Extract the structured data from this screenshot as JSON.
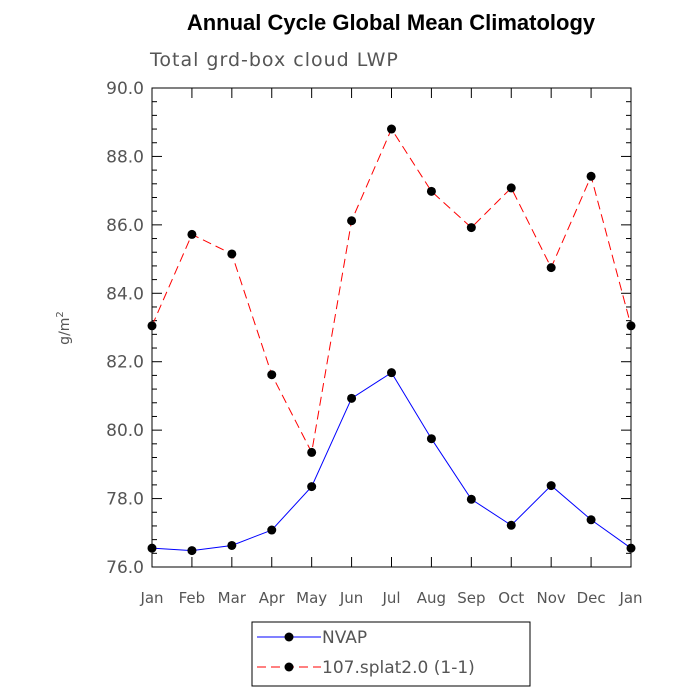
{
  "chart_data": {
    "type": "line",
    "title": "Annual Cycle Global Mean Climatology",
    "subtitle": "Total grd-box cloud LWP",
    "ylabel_base": "g/m",
    "ylabel_sup": "2",
    "xlabel": "",
    "ylim": [
      76.0,
      90.0
    ],
    "yticks": [
      "76.0",
      "78.0",
      "80.0",
      "82.0",
      "84.0",
      "86.0",
      "88.0",
      "90.0"
    ],
    "categories": [
      "Jan",
      "Feb",
      "Mar",
      "Apr",
      "May",
      "Jun",
      "Jul",
      "Aug",
      "Sep",
      "Oct",
      "Nov",
      "Dec",
      "Jan"
    ],
    "series": [
      {
        "name": "NVAP",
        "color": "#0000ff",
        "dash": "solid",
        "values": [
          76.55,
          76.48,
          76.63,
          77.08,
          78.35,
          80.93,
          81.68,
          79.75,
          77.98,
          77.22,
          78.38,
          77.38,
          76.55
        ]
      },
      {
        "name": "107.splat2.0 (1-1)",
        "color": "#ff0000",
        "dash": "dashed",
        "values": [
          83.05,
          85.72,
          85.15,
          81.62,
          79.35,
          86.12,
          88.8,
          86.98,
          85.92,
          87.08,
          84.75,
          87.42,
          83.05
        ]
      }
    ],
    "marker": "filled-circle",
    "legend_position": "bottom"
  }
}
